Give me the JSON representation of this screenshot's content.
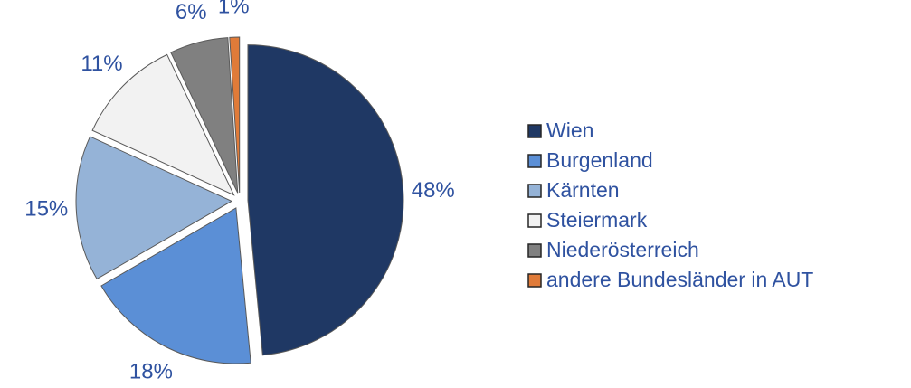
{
  "chart_data": {
    "type": "pie",
    "categories": [
      "Wien",
      "Burgenland",
      "Kärnten",
      "Steiermark",
      "Niederösterreich",
      "andere Bundesländer in AUT"
    ],
    "values": [
      48,
      18,
      15,
      11,
      6,
      1
    ],
    "value_labels": [
      "48%",
      "18%",
      "15%",
      "11%",
      "6%",
      "1%"
    ],
    "colors": [
      "#1f3864",
      "#5b8fd6",
      "#95b3d7",
      "#f2f2f2",
      "#808080",
      "#e07b39"
    ],
    "legend": "right"
  }
}
